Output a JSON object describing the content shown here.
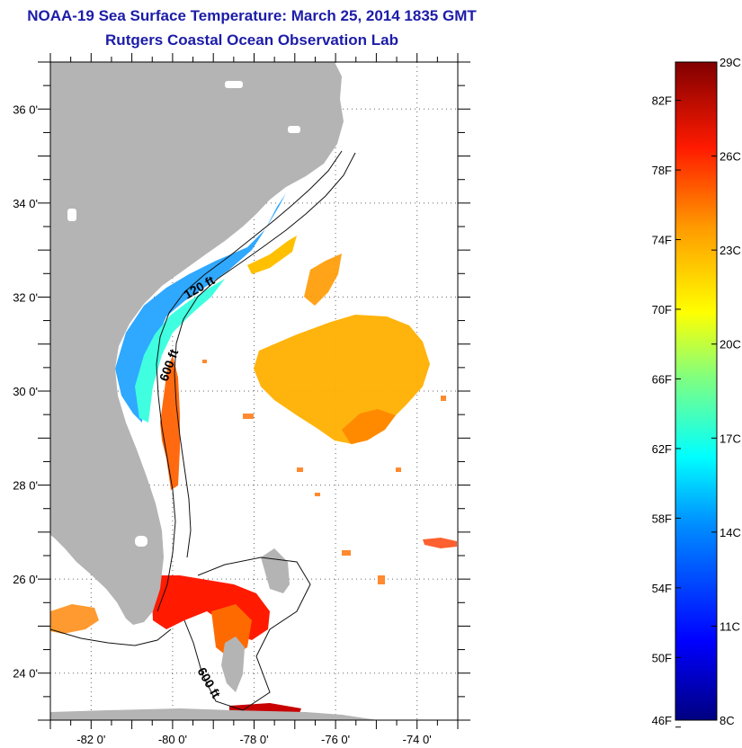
{
  "title": "NOAA-19 Sea Surface Temperature:  March 25, 2014 1835 GMT",
  "subtitle": "Rutgers Coastal Ocean Observation Lab",
  "map": {
    "lon_range": [
      -83,
      -73
    ],
    "lat_range": [
      23,
      37
    ],
    "lon_ticks": [
      {
        "value": -82,
        "label": "-82 0'"
      },
      {
        "value": -80,
        "label": "-80 0'"
      },
      {
        "value": -78,
        "label": "-78 0'"
      },
      {
        "value": -76,
        "label": "-76 0'"
      },
      {
        "value": -74,
        "label": "-74 0'"
      }
    ],
    "lat_ticks": [
      {
        "value": 24,
        "label": "24 0'"
      },
      {
        "value": 26,
        "label": "26 0'"
      },
      {
        "value": 28,
        "label": "28 0'"
      },
      {
        "value": 30,
        "label": "30 0'"
      },
      {
        "value": 32,
        "label": "32 0'"
      },
      {
        "value": 34,
        "label": "34 0'"
      },
      {
        "value": 36,
        "label": "36 0'"
      }
    ],
    "contour_labels": [
      "120 ft",
      "600 ft",
      "600 ft"
    ],
    "land_color": "#b4b4b4",
    "grid": "dotted"
  },
  "colorbar": {
    "range_c": [
      8,
      29
    ],
    "celsius_ticks": [
      {
        "value": 29,
        "label": "29C"
      },
      {
        "value": 26,
        "label": "26C"
      },
      {
        "value": 23,
        "label": "23C"
      },
      {
        "value": 20,
        "label": "20C"
      },
      {
        "value": 17,
        "label": "17C"
      },
      {
        "value": 14,
        "label": "14C"
      },
      {
        "value": 11,
        "label": "11C"
      },
      {
        "value": 8,
        "label": "8C"
      }
    ],
    "fahrenheit_ticks": [
      {
        "value": 82,
        "label": "82F"
      },
      {
        "value": 78,
        "label": "78F"
      },
      {
        "value": 74,
        "label": "74F"
      },
      {
        "value": 70,
        "label": "70F"
      },
      {
        "value": 66,
        "label": "66F"
      },
      {
        "value": 62,
        "label": "62F"
      },
      {
        "value": 58,
        "label": "58F"
      },
      {
        "value": 54,
        "label": "54F"
      },
      {
        "value": 50,
        "label": "50F"
      },
      {
        "value": 46,
        "label": "46F"
      }
    ]
  }
}
